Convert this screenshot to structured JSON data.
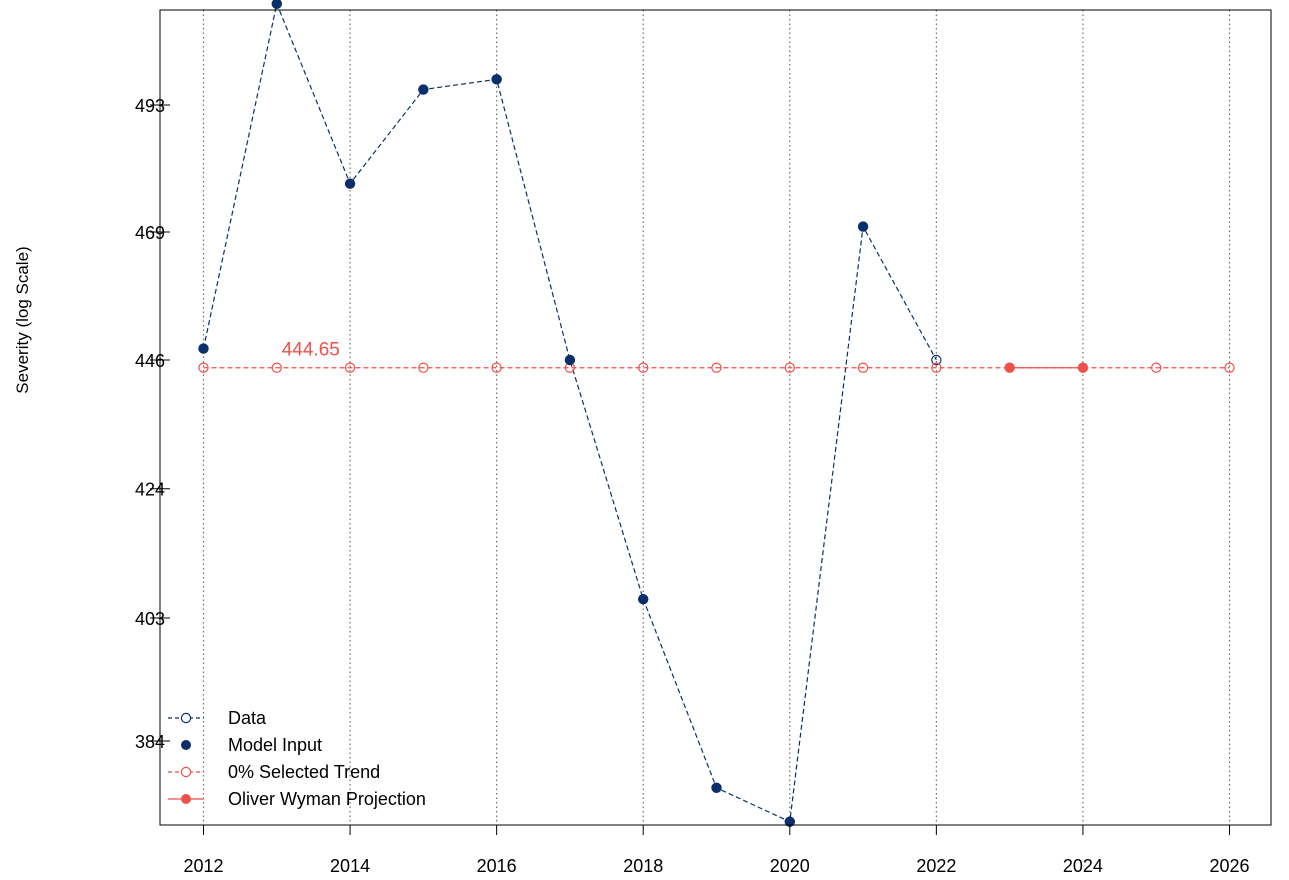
{
  "chart_data": {
    "type": "line",
    "title": "",
    "xlabel": "",
    "ylabel": "Severity (log Scale)",
    "log_y": true,
    "xlim": [
      2011.6,
      2026.6
    ],
    "ylim": [
      367,
      521
    ],
    "x_ticks": [
      2012,
      2014,
      2016,
      2018,
      2020,
      2022,
      2024,
      2026
    ],
    "y_ticks": [
      384,
      403,
      424,
      446,
      469,
      493
    ],
    "vertical_grid": true,
    "grid_style": "dotted",
    "legend_position": "bottom-left",
    "annotation": {
      "text": "444.65",
      "x": 2013,
      "y": 444.65,
      "color": "#f0504a"
    },
    "series": [
      {
        "name": "Data",
        "style": "dashed-open-circle",
        "color": "#0b2f6b",
        "x": [
          2012,
          2013,
          2014,
          2015,
          2016,
          2017,
          2018,
          2019,
          2020,
          2021,
          2022
        ],
        "values": [
          448,
          513,
          478,
          496,
          498,
          446,
          406,
          377,
          372,
          470,
          446
        ]
      },
      {
        "name": "Model Input",
        "style": "filled-circle",
        "color": "#0b2f6b",
        "x": [
          2012,
          2013,
          2014,
          2015,
          2016,
          2017,
          2018,
          2019,
          2020,
          2021
        ],
        "values": [
          448,
          513,
          478,
          496,
          498,
          446,
          406,
          377,
          372,
          470
        ]
      },
      {
        "name": "0% Selected Trend",
        "style": "dashed-open-circle",
        "color": "#f0504a",
        "x": [
          2012,
          2013,
          2014,
          2015,
          2016,
          2017,
          2018,
          2019,
          2020,
          2021,
          2022,
          2023,
          2024,
          2025,
          2026
        ],
        "values": [
          444.65,
          444.65,
          444.65,
          444.65,
          444.65,
          444.65,
          444.65,
          444.65,
          444.65,
          444.65,
          444.65,
          444.65,
          444.65,
          444.65,
          444.65
        ]
      },
      {
        "name": "Oliver Wyman Projection",
        "style": "solid-filled-circle",
        "color": "#f0504a",
        "x": [
          2023,
          2024
        ],
        "values": [
          444.65,
          444.65
        ]
      }
    ]
  }
}
